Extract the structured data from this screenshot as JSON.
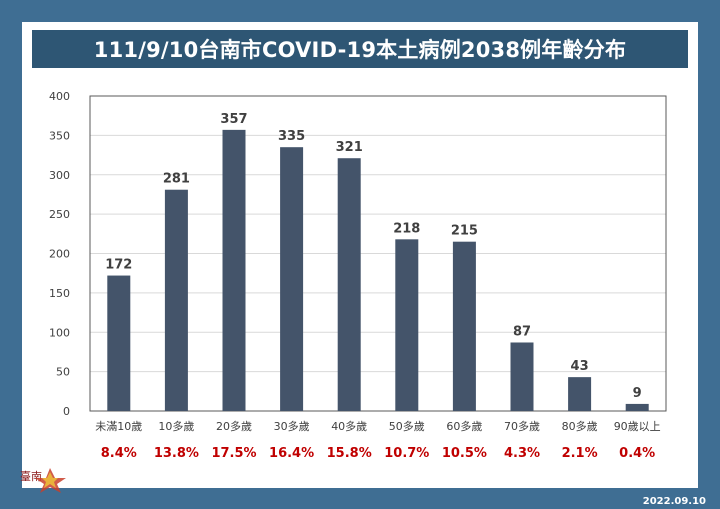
{
  "title": "111/9/10台南市COVID-19本土病例2038例年齡分布",
  "footer_date": "2022.09.10",
  "logo_text": "臺南",
  "colors": {
    "bar": "#44546a",
    "percent": "#c00000",
    "title_bg": "#2e5674",
    "page_bg": "#3f6e93"
  },
  "chart_data": {
    "type": "bar",
    "title": "111/9/10台南市COVID-19本土病例2038例年齡分布",
    "categories": [
      "未滿10歲",
      "10多歲",
      "20多歲",
      "30多歲",
      "40多歲",
      "50多歲",
      "60多歲",
      "70多歲",
      "80多歲",
      "90歲以上"
    ],
    "values": [
      172,
      281,
      357,
      335,
      321,
      218,
      215,
      87,
      43,
      9
    ],
    "percentages": [
      "8.4%",
      "13.8%",
      "17.5%",
      "16.4%",
      "15.8%",
      "10.7%",
      "10.5%",
      "4.3%",
      "2.1%",
      "0.4%"
    ],
    "yticks": [
      0,
      50,
      100,
      150,
      200,
      250,
      300,
      350,
      400
    ],
    "ylim": [
      0,
      400
    ],
    "grid": true,
    "legend": "none"
  }
}
